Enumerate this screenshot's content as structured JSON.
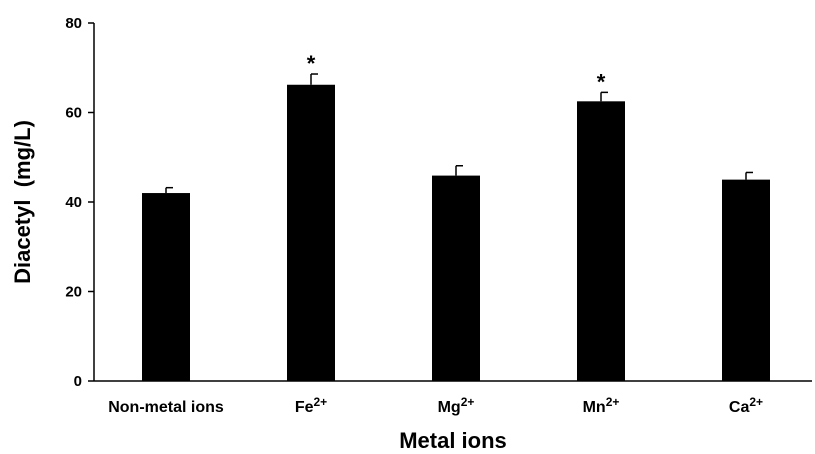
{
  "chart_data": {
    "type": "bar",
    "categories": [
      {
        "base": "Non-metal ions",
        "sup": ""
      },
      {
        "base": "Fe",
        "sup": "2+"
      },
      {
        "base": "Mg",
        "sup": "2+"
      },
      {
        "base": "Mn",
        "sup": "2+"
      },
      {
        "base": "Ca",
        "sup": "2+"
      }
    ],
    "values": [
      42,
      66.2,
      45.9,
      62.5,
      45
    ],
    "errors": [
      1.2,
      2.4,
      2.2,
      2.0,
      1.6
    ],
    "annotations": [
      "",
      "*",
      "",
      "*",
      ""
    ],
    "xlabel": "Metal ions",
    "ylabel": "Diacetyl  (mg/L)",
    "ylim": [
      0,
      80
    ],
    "yticks": [
      0,
      20,
      40,
      60,
      80
    ],
    "grid": false,
    "colors": {
      "bar": "#000000",
      "axis": "#000000",
      "error_bar": "#000000"
    }
  }
}
